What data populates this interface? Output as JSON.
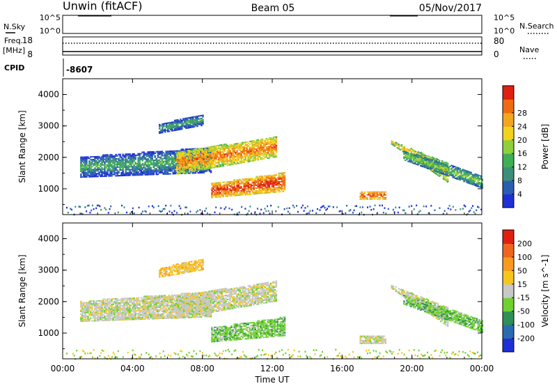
{
  "header": {
    "radar": "Unwin  (fitACF)",
    "beam": "Beam 05",
    "date": "05/Nov/2017"
  },
  "strip_labels": {
    "nsky": "N.Sky",
    "freq_line1": "Freq.",
    "freq_line2": "[MHz]",
    "cpid": "CPID",
    "nsearch": "N.Search",
    "nave": "Nave",
    "cpid_value": "-8607",
    "nsky_top": "10^5",
    "nsky_bot": "10^0",
    "freq_top": "18",
    "freq_bot": "8",
    "nave_top": "80",
    "nave_bot": "0"
  },
  "chart_data": [
    {
      "type": "heatmap",
      "title": "",
      "xlabel": "",
      "ylabel": "Slant Range [km]",
      "x_ticks": [
        "00:00",
        "04:00",
        "08:00",
        "12:00",
        "16:00",
        "20:00",
        "00:00"
      ],
      "y_ticks": [
        "1000",
        "2000",
        "3000",
        "4000"
      ],
      "xlim_hours": [
        0,
        24
      ],
      "ylim_km": [
        180,
        4500
      ],
      "colorbar": {
        "label": "Power [dB]",
        "ticks": [
          "4",
          "8",
          "12",
          "16",
          "20",
          "24",
          "28"
        ],
        "colors": [
          "#1f2fd8",
          "#2a5fb0",
          "#3b8f7a",
          "#3fae55",
          "#8fcf3a",
          "#f2d21e",
          "#f2a51e",
          "#ef6b12",
          "#e01e12"
        ]
      },
      "bands": [
        {
          "h0": 1.0,
          "h1": 8.5,
          "r0": 1350,
          "r1": 1500,
          "r2": 2000,
          "r3": 2300,
          "val": 2
        },
        {
          "h0": 6.5,
          "h1": 12.2,
          "r0": 1450,
          "r1": 2000,
          "r2": 2150,
          "r3": 2650,
          "val": 6
        },
        {
          "h0": 8.5,
          "h1": 12.7,
          "r0": 700,
          "r1": 900,
          "r2": 1150,
          "r3": 1500,
          "val": 7
        },
        {
          "h0": 5.5,
          "h1": 8.0,
          "r0": 2750,
          "r1": 3000,
          "r2": 3050,
          "r3": 3350,
          "val": 2
        },
        {
          "h0": 17.0,
          "h1": 18.5,
          "r0": 650,
          "r1": 650,
          "r2": 900,
          "r3": 900,
          "val": 7
        },
        {
          "h0": 18.8,
          "h1": 22.0,
          "r0": 2400,
          "r1": 1200,
          "r2": 2500,
          "r3": 1800,
          "val": 5
        },
        {
          "h0": 19.5,
          "h1": 24.0,
          "r0": 1900,
          "r1": 1000,
          "r2": 2200,
          "r3": 1400,
          "val": 3
        }
      ]
    },
    {
      "type": "heatmap",
      "title": "",
      "xlabel": "Time UT",
      "ylabel": "Slant Range [km]",
      "x_ticks": [
        "00:00",
        "04:00",
        "08:00",
        "12:00",
        "16:00",
        "20:00",
        "00:00"
      ],
      "y_ticks": [
        "1000",
        "2000",
        "3000",
        "4000"
      ],
      "xlim_hours": [
        0,
        24
      ],
      "ylim_km": [
        180,
        4500
      ],
      "colorbar": {
        "label": "Velocity [m s^-1]",
        "ticks": [
          "200",
          "100",
          "50",
          "15",
          "-15",
          "-50",
          "-100",
          "-200"
        ],
        "colors": [
          "#1f2fd8",
          "#2b6cb0",
          "#2e8f57",
          "#6fd12e",
          "#c8c8c8",
          "#f7c61e",
          "#f79a1e",
          "#f0651e",
          "#e01e12"
        ]
      },
      "bands": [
        {
          "h0": 1.0,
          "h1": 8.5,
          "r0": 1350,
          "r1": 1500,
          "r2": 2000,
          "r3": 2300,
          "val": 4
        },
        {
          "h0": 6.5,
          "h1": 12.2,
          "r0": 1450,
          "r1": 2000,
          "r2": 2150,
          "r3": 2650,
          "val": 4
        },
        {
          "h0": 8.5,
          "h1": 12.7,
          "r0": 700,
          "r1": 900,
          "r2": 1150,
          "r3": 1500,
          "val": 3
        },
        {
          "h0": 5.5,
          "h1": 8.0,
          "r0": 2750,
          "r1": 3000,
          "r2": 3050,
          "r3": 3350,
          "val": 5
        },
        {
          "h0": 17.0,
          "h1": 18.5,
          "r0": 650,
          "r1": 650,
          "r2": 900,
          "r3": 900,
          "val": 4
        },
        {
          "h0": 18.8,
          "h1": 22.0,
          "r0": 2400,
          "r1": 1200,
          "r2": 2500,
          "r3": 1800,
          "val": 4
        },
        {
          "h0": 19.5,
          "h1": 24.0,
          "r0": 1900,
          "r1": 1000,
          "r2": 2200,
          "r3": 1400,
          "val": 3
        }
      ]
    }
  ]
}
